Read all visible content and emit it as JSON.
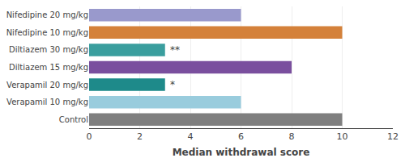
{
  "chart_data": {
    "type": "bar",
    "orientation": "horizontal",
    "categories": [
      "Control",
      "Verapamil 10 mg/kg",
      "Verapamil 20 mg/kg",
      "Diltiazem 15 mg/kg",
      "Diltiazem 30 mg/kg",
      "Nifedipine 10 mg/kg",
      "Nifedipine 20 mg/kg"
    ],
    "values": [
      10,
      6,
      3,
      8,
      3,
      10,
      6
    ],
    "colors": [
      "#7f7f7f",
      "#99ccdd",
      "#1e8a8a",
      "#7a4f9e",
      "#3a9e9e",
      "#d4813a",
      "#9999cc"
    ],
    "annotations": [
      {
        "text": "**",
        "category": "Diltiazem 30 mg/kg"
      },
      {
        "text": "*",
        "category": "Verapamil 20 mg/kg"
      }
    ],
    "xlabel": "Median withdrawal score",
    "xlim": [
      0,
      12
    ],
    "xticks": [
      0,
      2,
      4,
      6,
      8,
      10,
      12
    ],
    "grid": true
  }
}
